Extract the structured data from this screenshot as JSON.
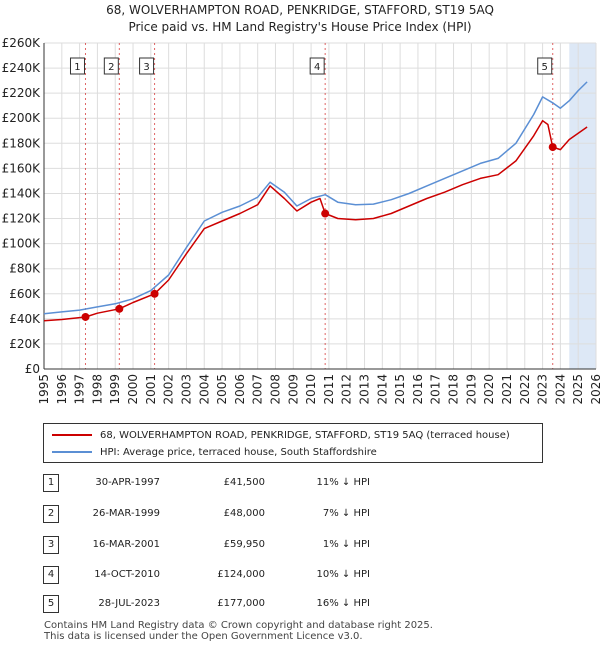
{
  "title": "68, WOLVERHAMPTON ROAD, PENKRIDGE, STAFFORD, ST19 5AQ",
  "subtitle": "Price paid vs. HM Land Registry's House Price Index (HPI)",
  "colors": {
    "property": "#cc0000",
    "hpi": "#5b8fd4",
    "marker_line": "#cc0000",
    "shade": "#dde8f6",
    "grid": "#dddddd"
  },
  "chart_data": {
    "type": "line",
    "title": "Price paid vs. HM Land Registry's House Price Index (HPI)",
    "xlabel": "",
    "ylabel": "",
    "xlim": [
      1995,
      2026
    ],
    "ylim": [
      0,
      260000
    ],
    "y_ticks": [
      0,
      20000,
      40000,
      60000,
      80000,
      100000,
      120000,
      140000,
      160000,
      180000,
      200000,
      220000,
      240000,
      260000
    ],
    "y_tick_labels": [
      "£0",
      "£20K",
      "£40K",
      "£60K",
      "£80K",
      "£100K",
      "£120K",
      "£140K",
      "£160K",
      "£180K",
      "£200K",
      "£220K",
      "£240K",
      "£260K"
    ],
    "x_ticks": [
      1995,
      1996,
      1997,
      1998,
      1999,
      2000,
      2001,
      2002,
      2003,
      2004,
      2005,
      2006,
      2007,
      2008,
      2009,
      2010,
      2011,
      2012,
      2013,
      2014,
      2015,
      2016,
      2017,
      2018,
      2019,
      2020,
      2021,
      2022,
      2023,
      2024,
      2025,
      2026
    ],
    "x_tick_labels": [
      "1995",
      "1996",
      "1997",
      "1998",
      "1999",
      "2000",
      "2001",
      "2002",
      "2003",
      "2004",
      "2005",
      "2006",
      "2007",
      "2008",
      "2009",
      "2010",
      "2011",
      "2012",
      "2013",
      "2014",
      "2015",
      "2016",
      "2017",
      "2018",
      "2019",
      "2020",
      "2021",
      "2022",
      "2023",
      "2024",
      "2025",
      "2026"
    ],
    "shaded_region": [
      2024.5,
      2026
    ],
    "grid": true,
    "series": [
      {
        "name": "HPI: Average price, terraced house, South Staffordshire",
        "x": [
          1995,
          1996,
          1997,
          1998,
          1999,
          2000,
          2001,
          2002,
          2003,
          2004,
          2005,
          2006,
          2007,
          2007.7,
          2008.5,
          2009.2,
          2010,
          2010.8,
          2011.5,
          2012.5,
          2013.5,
          2014.5,
          2015.5,
          2016.5,
          2017.5,
          2018.5,
          2019.5,
          2020.5,
          2021.5,
          2022.5,
          2023,
          2023.6,
          2024,
          2024.5,
          2025,
          2025.5
        ],
        "values": [
          44000,
          45500,
          47000,
          49500,
          52000,
          56000,
          62500,
          75000,
          97000,
          118000,
          125000,
          130000,
          137000,
          149000,
          141000,
          130000,
          136000,
          139000,
          133000,
          131000,
          131500,
          135000,
          140000,
          146000,
          152000,
          158000,
          164000,
          168000,
          180000,
          203000,
          217000,
          212000,
          208000,
          214000,
          222000,
          229000
        ]
      },
      {
        "name": "68, WOLVERHAMPTON ROAD, PENKRIDGE, STAFFORD, ST19 5AQ (terraced house)",
        "x": [
          1995,
          1996,
          1997.33,
          1998,
          1999.23,
          2000,
          2001.21,
          2002,
          2003,
          2004,
          2005,
          2006,
          2007,
          2007.7,
          2008.5,
          2009.2,
          2010,
          2010.5,
          2010.79,
          2011.5,
          2012.5,
          2013.5,
          2014.5,
          2015.5,
          2016.5,
          2017.5,
          2018.5,
          2019.5,
          2020.5,
          2021.5,
          2022.5,
          2023,
          2023.3,
          2023.57,
          2024,
          2024.5,
          2025,
          2025.5
        ],
        "values": [
          38500,
          39500,
          41500,
          44500,
          48000,
          53000,
          59950,
          71000,
          92000,
          112000,
          118000,
          124000,
          131000,
          146000,
          136000,
          126000,
          133000,
          136000,
          124000,
          120000,
          119000,
          120000,
          124000,
          130000,
          136000,
          141000,
          147000,
          152000,
          155000,
          166000,
          186000,
          198000,
          195000,
          177000,
          175000,
          183000,
          188000,
          193000
        ]
      }
    ],
    "transactions": [
      {
        "label": "1",
        "x": 1997.33,
        "price": 41500
      },
      {
        "label": "2",
        "x": 1999.23,
        "price": 48000
      },
      {
        "label": "3",
        "x": 2001.21,
        "price": 59950
      },
      {
        "label": "4",
        "x": 2010.79,
        "price": 124000
      },
      {
        "label": "5",
        "x": 2023.57,
        "price": 177000
      }
    ]
  },
  "legend": {
    "property": "68, WOLVERHAMPTON ROAD, PENKRIDGE, STAFFORD, ST19 5AQ (terraced house)",
    "hpi": "HPI: Average price, terraced house, South Staffordshire"
  },
  "table": [
    {
      "num": "1",
      "date": "30-APR-1997",
      "price": "£41,500",
      "hpi": "11% ↓ HPI"
    },
    {
      "num": "2",
      "date": "26-MAR-1999",
      "price": "£48,000",
      "hpi": "7% ↓ HPI"
    },
    {
      "num": "3",
      "date": "16-MAR-2001",
      "price": "£59,950",
      "hpi": "1% ↓ HPI"
    },
    {
      "num": "4",
      "date": "14-OCT-2010",
      "price": "£124,000",
      "hpi": "10% ↓ HPI"
    },
    {
      "num": "5",
      "date": "28-JUL-2023",
      "price": "£177,000",
      "hpi": "16% ↓ HPI"
    }
  ],
  "footer": {
    "line1": "Contains HM Land Registry data © Crown copyright and database right 2025.",
    "line2": "This data is licensed under the Open Government Licence v3.0."
  }
}
